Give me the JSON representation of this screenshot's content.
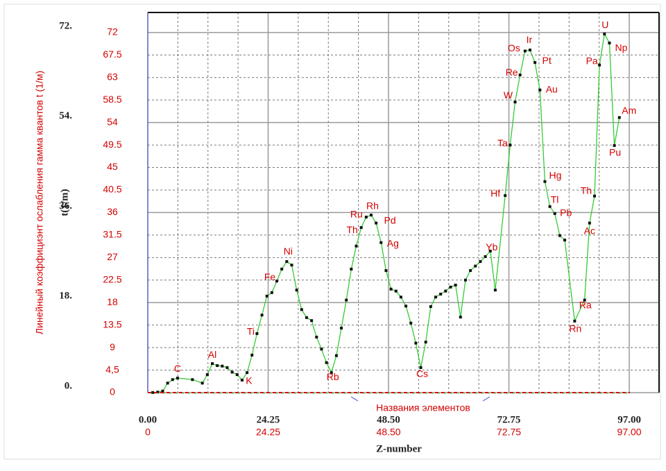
{
  "chart_data": {
    "type": "line",
    "ylabel": "t(1/m)",
    "ylabel_secondary": "Линейный коэффициэнт ослабления гамма квантов t (1/м)",
    "xlabel": "Z-number",
    "xlabel_secondary": "Названия элементов",
    "xlim": [
      0,
      103
    ],
    "ylim": [
      0,
      76
    ],
    "xticks": [
      {
        "value": 0,
        "label": "0.00"
      },
      24.25,
      {
        "value": 48.5,
        "label": "48.50"
      },
      72.75,
      {
        "value": 97,
        "label": "97.00"
      }
    ],
    "xticks_secondary": [
      0,
      24.25,
      {
        "value": 48.5,
        "label": "48.50"
      },
      72.75,
      {
        "value": 97,
        "label": "97.00"
      }
    ],
    "xminorticks": [
      6.0625,
      12.125,
      18.1875,
      30.3125,
      36.375,
      42.4375,
      54.5625,
      60.625,
      66.6875,
      78.8125,
      84.875,
      90.9375
    ],
    "yticks": [
      {
        "value": 0,
        "label": "0."
      },
      {
        "value": 18,
        "label": "18."
      },
      {
        "value": 36,
        "label": "36."
      },
      {
        "value": 54,
        "label": "54."
      },
      {
        "value": 72,
        "label": "72."
      }
    ],
    "yticks_secondary": [
      0,
      {
        "value": 4.5,
        "label": "4,5"
      },
      9,
      13.5,
      18,
      22.5,
      27,
      31.5,
      36,
      40.5,
      45,
      49.5,
      54,
      58.5,
      63,
      67.5,
      72
    ],
    "grid": true,
    "color": "#33cc33",
    "marker_color": "#111111",
    "x": [
      1,
      2,
      3,
      4,
      5,
      6,
      9,
      11,
      12,
      13,
      14,
      15,
      16,
      17,
      18,
      19,
      20,
      21,
      22,
      23,
      24,
      25,
      26,
      27,
      28,
      29,
      30,
      31,
      32,
      33,
      34,
      35,
      36,
      37,
      38,
      39,
      40,
      41,
      42,
      43,
      44,
      45,
      46,
      47,
      48,
      49,
      50,
      51,
      52,
      53,
      54,
      55,
      56,
      57,
      58,
      59,
      60,
      61,
      62,
      63,
      64,
      65,
      66,
      67,
      68,
      69,
      70,
      72,
      73,
      74,
      75,
      76,
      77,
      78,
      79,
      80,
      81,
      82,
      83,
      84,
      86,
      88,
      89,
      90,
      91,
      92,
      93,
      94,
      95
    ],
    "values": [
      0,
      0.1,
      0.3,
      1.9,
      2.6,
      2.9,
      2.6,
      1.9,
      3.6,
      5.8,
      5.4,
      5.3,
      5.0,
      4.1,
      3.6,
      2.5,
      4.0,
      7.5,
      11.8,
      15.5,
      19.3,
      20,
      22.3,
      24.7,
      26.2,
      25.5,
      20.5,
      16.6,
      15,
      14.4,
      11.1,
      8.7,
      6.0,
      4.0,
      7.4,
      12.9,
      18.5,
      24.7,
      29.3,
      33,
      35.1,
      35.5,
      33.9,
      30,
      24.4,
      20.7,
      20.3,
      19.1,
      17.3,
      13.9,
      9.9,
      5.0,
      10.1,
      17.2,
      19.1,
      19.7,
      20.3,
      21.1,
      21.5,
      15.1,
      22.5,
      24.4,
      25.3,
      26.2,
      27.2,
      28.3,
      20.5,
      39.4,
      49.5,
      58.1,
      63.5,
      68.3,
      68.5,
      66,
      60.5,
      42.2,
      37.2,
      35.8,
      31.4,
      30.5,
      14.3,
      18.5,
      33.9,
      39.3,
      65.5,
      71.7,
      69.9,
      49.4,
      55
    ],
    "point_labels": [
      null,
      null,
      null,
      null,
      null,
      "C",
      null,
      null,
      null,
      "Al",
      null,
      null,
      null,
      null,
      null,
      "K",
      null,
      null,
      "Ti",
      null,
      null,
      null,
      "Fe",
      null,
      "Ni",
      null,
      null,
      null,
      null,
      null,
      null,
      null,
      null,
      "Rb",
      null,
      null,
      null,
      null,
      null,
      "Th",
      "Ru",
      "Rh",
      "Pd",
      "Ag",
      null,
      null,
      null,
      null,
      null,
      null,
      null,
      "Cs",
      null,
      null,
      null,
      null,
      null,
      null,
      null,
      null,
      null,
      null,
      null,
      null,
      null,
      null,
      "Yb",
      "Hf",
      "Ta",
      "W",
      "Re",
      "Os",
      "Ir",
      "Pt",
      "Au",
      "Hg",
      "Tl",
      "Pb",
      null,
      null,
      "Rn",
      "Ra",
      "Ac",
      "Th",
      "Pa",
      "U",
      "Np",
      "Pu",
      "Am"
    ]
  }
}
